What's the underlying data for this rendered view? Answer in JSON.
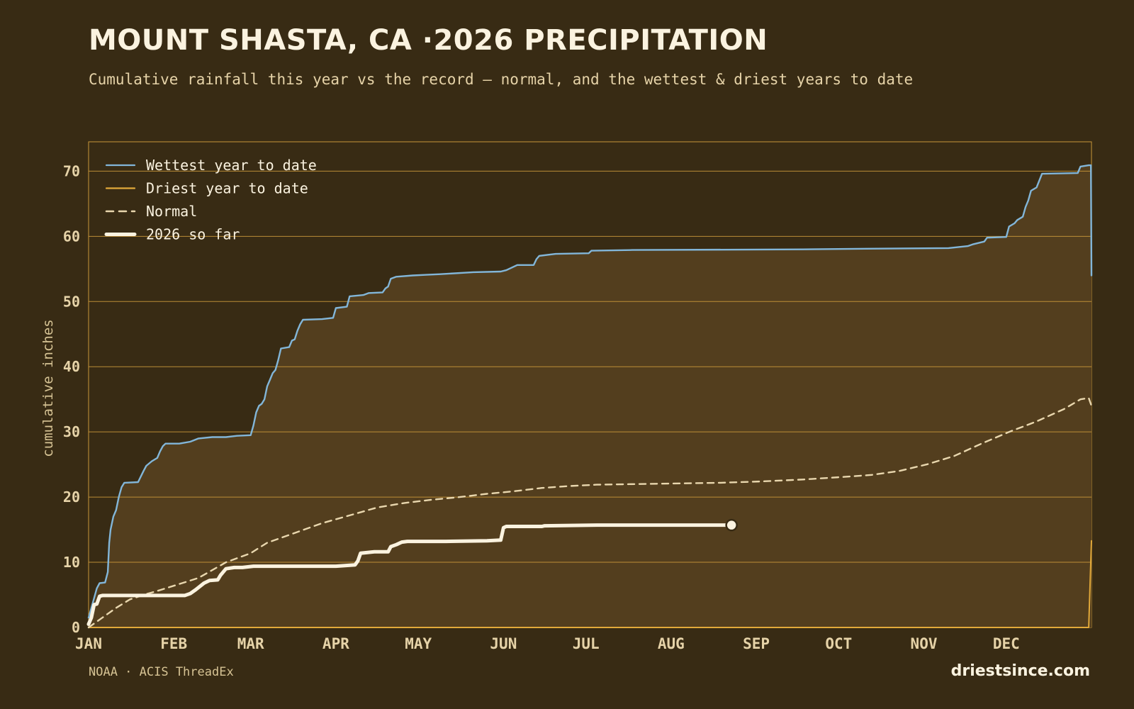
{
  "header": {
    "title": "MOUNT SHASTA, CA ·2026 PRECIPITATION",
    "subtitle": "Cumulative rainfall this year vs the record — normal, and the wettest & driest years to date"
  },
  "footer": {
    "source": "NOAA · ACIS ThreadEx",
    "brand": "driestsince.com"
  },
  "colors": {
    "background": "#382b14",
    "fill": "#533e1e",
    "grid": "#c9973a",
    "wettest": "#82b6d9",
    "driest": "#e2a93a",
    "normal": "#e9d7ae",
    "current": "#fbf3e0"
  },
  "chart_data": {
    "type": "line",
    "ylabel": "cumulative inches",
    "xlabel": "",
    "ylim": [
      0,
      74.5
    ],
    "xlim": [
      0,
      365
    ],
    "yticks": [
      0,
      10,
      20,
      30,
      40,
      50,
      60,
      70
    ],
    "grid": true,
    "legend_placement": "top-left",
    "x_ticks": [
      {
        "label": "JAN",
        "day": 0
      },
      {
        "label": "FEB",
        "day": 31
      },
      {
        "label": "MAR",
        "day": 59
      },
      {
        "label": "APR",
        "day": 90
      },
      {
        "label": "MAY",
        "day": 120
      },
      {
        "label": "JUN",
        "day": 151
      },
      {
        "label": "JUL",
        "day": 181
      },
      {
        "label": "AUG",
        "day": 212
      },
      {
        "label": "SEP",
        "day": 243
      },
      {
        "label": "OCT",
        "day": 273
      },
      {
        "label": "NOV",
        "day": 304
      },
      {
        "label": "DEC",
        "day": 334
      }
    ],
    "series": [
      {
        "name": "Wettest year to date",
        "style": "solid",
        "points": [
          [
            0,
            1.5
          ],
          [
            1,
            3
          ],
          [
            2,
            4.5
          ],
          [
            3,
            6
          ],
          [
            4,
            6.8
          ],
          [
            6,
            6.9
          ],
          [
            7,
            8.5
          ],
          [
            7.5,
            13
          ],
          [
            8,
            15
          ],
          [
            9,
            17
          ],
          [
            10,
            18
          ],
          [
            11,
            20
          ],
          [
            12,
            21.5
          ],
          [
            13,
            22.2
          ],
          [
            18,
            22.3
          ],
          [
            20,
            24
          ],
          [
            21,
            24.8
          ],
          [
            23,
            25.5
          ],
          [
            25,
            26
          ],
          [
            26,
            27
          ],
          [
            27,
            27.8
          ],
          [
            28,
            28.2
          ],
          [
            33,
            28.2
          ],
          [
            37,
            28.5
          ],
          [
            40,
            29
          ],
          [
            45,
            29.2
          ],
          [
            50,
            29.2
          ],
          [
            54,
            29.4
          ],
          [
            59,
            29.5
          ],
          [
            60,
            31
          ],
          [
            61,
            33
          ],
          [
            62,
            34
          ],
          [
            63,
            34.3
          ],
          [
            64,
            35
          ],
          [
            65,
            37
          ],
          [
            66,
            38
          ],
          [
            67,
            39
          ],
          [
            68,
            39.5
          ],
          [
            69,
            41
          ],
          [
            70,
            42.8
          ],
          [
            73,
            43
          ],
          [
            74,
            44
          ],
          [
            75,
            44.2
          ],
          [
            76,
            45.5
          ],
          [
            77,
            46.5
          ],
          [
            78,
            47.2
          ],
          [
            85,
            47.3
          ],
          [
            89,
            47.5
          ],
          [
            90,
            49
          ],
          [
            94,
            49.2
          ],
          [
            95,
            50.8
          ],
          [
            100,
            51
          ],
          [
            102,
            51.3
          ],
          [
            107,
            51.4
          ],
          [
            108,
            52
          ],
          [
            109,
            52.3
          ],
          [
            110,
            53.5
          ],
          [
            112,
            53.8
          ],
          [
            118,
            54
          ],
          [
            123,
            54.1
          ],
          [
            128,
            54.2
          ],
          [
            140,
            54.5
          ],
          [
            150,
            54.6
          ],
          [
            152,
            54.8
          ],
          [
            156,
            55.6
          ],
          [
            162,
            55.6
          ],
          [
            163,
            56.5
          ],
          [
            164,
            57
          ],
          [
            170,
            57.3
          ],
          [
            182,
            57.4
          ],
          [
            183,
            57.8
          ],
          [
            198,
            57.9
          ],
          [
            260,
            58
          ],
          [
            283,
            58.1
          ],
          [
            313,
            58.2
          ],
          [
            320,
            58.5
          ],
          [
            322,
            58.8
          ],
          [
            326,
            59.2
          ],
          [
            327,
            59.8
          ],
          [
            334,
            59.9
          ],
          [
            335,
            61.5
          ],
          [
            337,
            62
          ],
          [
            338,
            62.5
          ],
          [
            340,
            63
          ],
          [
            341,
            64.5
          ],
          [
            342,
            65.5
          ],
          [
            343,
            67
          ],
          [
            345,
            67.5
          ],
          [
            347,
            69.6
          ],
          [
            360,
            69.7
          ],
          [
            361,
            70.7
          ],
          [
            364,
            70.9
          ],
          [
            364.8,
            70.9
          ],
          [
            365,
            54
          ]
        ]
      },
      {
        "name": "Driest year to date",
        "style": "solid",
        "points": [
          [
            0,
            0
          ],
          [
            364,
            0
          ],
          [
            365,
            13.3
          ]
        ]
      },
      {
        "name": "Normal",
        "style": "dashed",
        "points": [
          [
            0,
            0
          ],
          [
            5,
            1.5
          ],
          [
            10,
            3
          ],
          [
            15,
            4.3
          ],
          [
            20,
            5
          ],
          [
            25,
            5.6
          ],
          [
            31,
            6.4
          ],
          [
            40,
            7.6
          ],
          [
            50,
            10
          ],
          [
            59,
            11.4
          ],
          [
            65,
            13
          ],
          [
            75,
            14.5
          ],
          [
            85,
            16
          ],
          [
            95,
            17.2
          ],
          [
            105,
            18.4
          ],
          [
            115,
            19.1
          ],
          [
            125,
            19.6
          ],
          [
            135,
            20
          ],
          [
            145,
            20.5
          ],
          [
            155,
            20.9
          ],
          [
            165,
            21.4
          ],
          [
            175,
            21.7
          ],
          [
            185,
            21.9
          ],
          [
            200,
            22
          ],
          [
            215,
            22.1
          ],
          [
            230,
            22.2
          ],
          [
            245,
            22.4
          ],
          [
            260,
            22.7
          ],
          [
            275,
            23.1
          ],
          [
            285,
            23.4
          ],
          [
            295,
            24
          ],
          [
            305,
            25
          ],
          [
            315,
            26.3
          ],
          [
            325,
            28.2
          ],
          [
            335,
            30
          ],
          [
            345,
            31.6
          ],
          [
            355,
            33.5
          ],
          [
            361,
            35
          ],
          [
            364,
            35.2
          ],
          [
            365,
            34
          ]
        ]
      },
      {
        "name": "2026 so far",
        "style": "thick",
        "points": [
          [
            0,
            0.5
          ],
          [
            1,
            1.5
          ],
          [
            2,
            3.5
          ],
          [
            3,
            3.6
          ],
          [
            4,
            4.8
          ],
          [
            5,
            4.9
          ],
          [
            35,
            4.9
          ],
          [
            37,
            5.2
          ],
          [
            39,
            5.8
          ],
          [
            42,
            6.8
          ],
          [
            44,
            7.2
          ],
          [
            47,
            7.3
          ],
          [
            48,
            8
          ],
          [
            50,
            9
          ],
          [
            53,
            9.2
          ],
          [
            56,
            9.2
          ],
          [
            60,
            9.4
          ],
          [
            90,
            9.4
          ],
          [
            97,
            9.6
          ],
          [
            98,
            10.2
          ],
          [
            99,
            11.4
          ],
          [
            104,
            11.6
          ],
          [
            109,
            11.6
          ],
          [
            110,
            12.4
          ],
          [
            112,
            12.7
          ],
          [
            114,
            13.1
          ],
          [
            116,
            13.2
          ],
          [
            130,
            13.2
          ],
          [
            145,
            13.3
          ],
          [
            150,
            13.4
          ],
          [
            151,
            15.3
          ],
          [
            152,
            15.5
          ],
          [
            165,
            15.5
          ],
          [
            166,
            15.6
          ],
          [
            185,
            15.7
          ],
          [
            234,
            15.7
          ]
        ]
      }
    ]
  }
}
